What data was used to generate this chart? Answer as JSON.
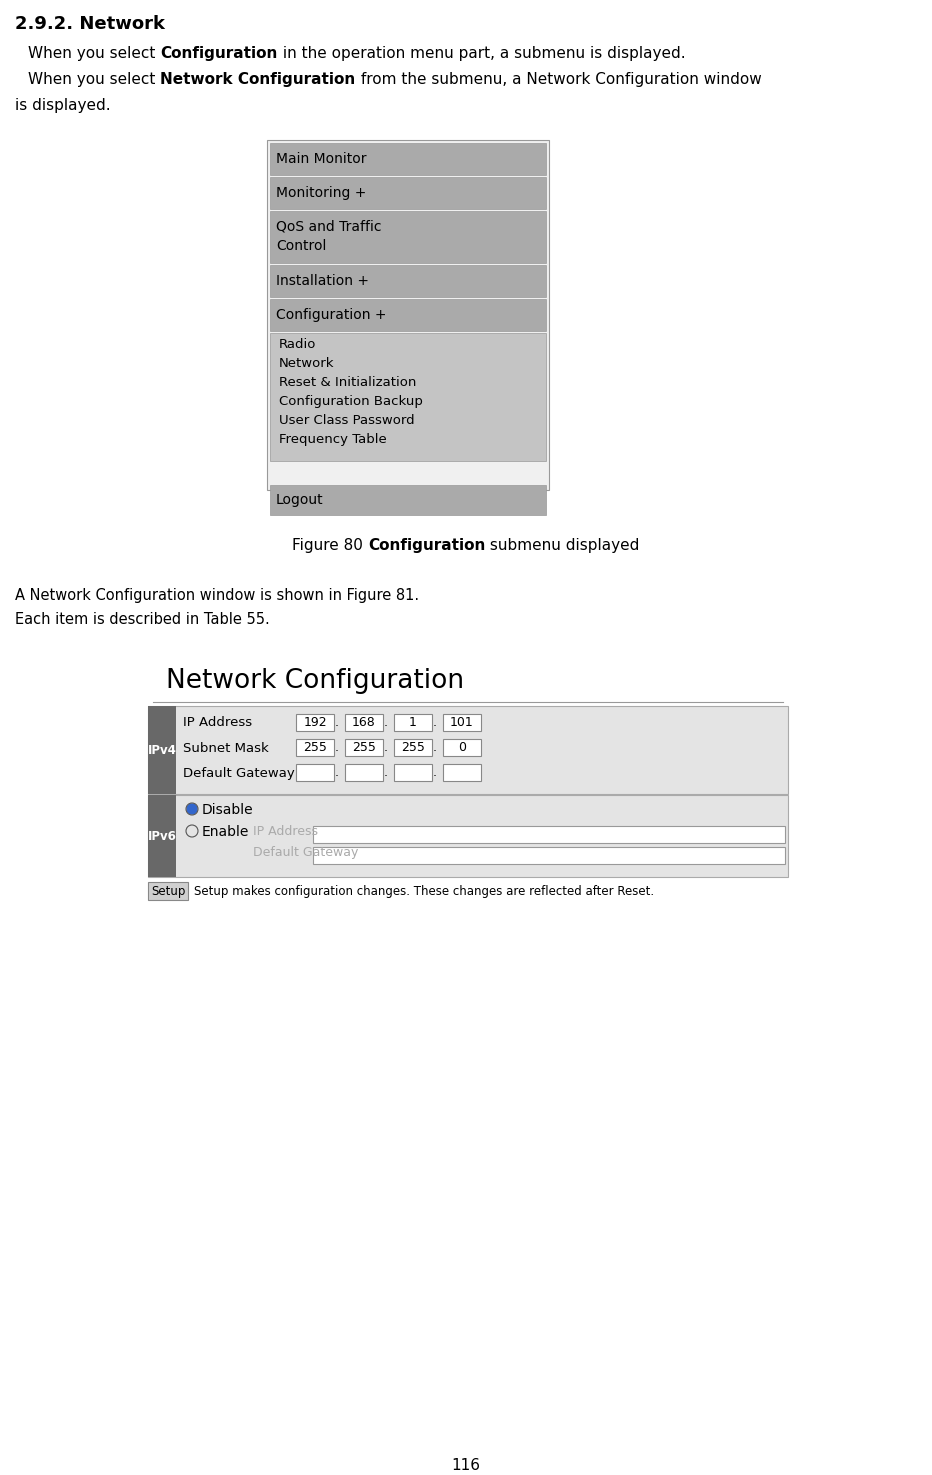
{
  "page_number": "116",
  "background_color": "#ffffff",
  "title": "2.9.2. Network",
  "menu_items_top": [
    "Main Monitor",
    "Monitoring +",
    "QoS and Traffic\nControl",
    "Installation +",
    "Configuration +"
  ],
  "menu_items_sub": [
    "Radio",
    "Network",
    "Reset & Initialization",
    "Configuration Backup",
    "User Class Password",
    "Frequency Table"
  ],
  "menu_item_bottom": "Logout",
  "para3": "A Network Configuration window is shown in Figure 81.",
  "para4": "Each item is described in Table 55.",
  "net_config_title": "Network Configuration",
  "ipv4_label": "IPv4",
  "ipv6_label": "IPv6",
  "ip_address_label": "IP Address",
  "subnet_mask_label": "Subnet Mask",
  "default_gateway_label": "Default Gateway",
  "ip_values": [
    "192",
    "168",
    "1",
    "101"
  ],
  "subnet_values": [
    "255",
    "255",
    "255",
    "0"
  ],
  "disable_label": "Disable",
  "enable_label": "Enable",
  "ip_address_label2": "IP Address",
  "default_gateway_label2": "Default Gateway",
  "setup_btn": "Setup",
  "setup_text": "Setup makes configuration changes. These changes are reflected after Reset.",
  "menu_gray_dark": "#aaaaaa",
  "menu_gray_sub": "#c4c4c4",
  "menu_gray_light": "#cccccc",
  "ipv_tab_color": "#686868",
  "ipv4_bg": "#e4e4e4",
  "ipv6_bg": "#e4e4e4"
}
